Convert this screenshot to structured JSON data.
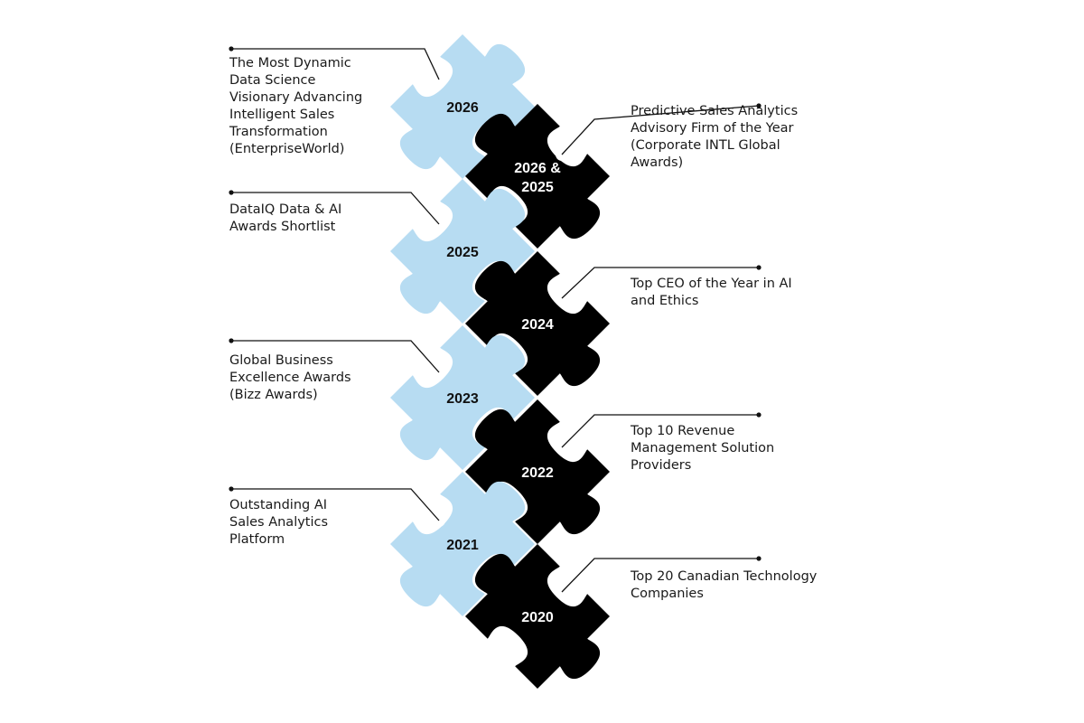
{
  "colors": {
    "light_piece": "#b7dcf2",
    "dark_piece": "#000000",
    "connector_line": "#111111",
    "text": "#1a1a1a"
  },
  "awards": [
    {
      "year": "2026",
      "side": "left",
      "piece": "light",
      "text": "The Most Dynamic\nData Science\nVisionary Advancing\nIntelligent Sales\nTransformation\n(EnterpriseWorld)"
    },
    {
      "year": "2026 & 2025",
      "side": "right",
      "piece": "dark",
      "text": "Predictive Sales Analytics\nAdvisory Firm of the Year\n(Corporate INTL Global\nAwards)"
    },
    {
      "year": "2025",
      "side": "left",
      "piece": "light",
      "text": "DataIQ Data & AI\nAwards Shortlist"
    },
    {
      "year": "2024",
      "side": "right",
      "piece": "dark",
      "text": "Top CEO of the Year in AI\nand Ethics"
    },
    {
      "year": "2023",
      "side": "left",
      "piece": "light",
      "text": "Global Business\nExcellence Awards\n(Bizz Awards)"
    },
    {
      "year": "2022",
      "side": "right",
      "piece": "dark",
      "text": "Top 10 Revenue\nManagement Solution\nProviders"
    },
    {
      "year": "2021",
      "side": "left",
      "piece": "light",
      "text": "Outstanding AI\nSales Analytics\nPlatform"
    },
    {
      "year": "2020",
      "side": "right",
      "piece": "dark",
      "text": "Top 20 Canadian Technology\nCompanies"
    }
  ]
}
